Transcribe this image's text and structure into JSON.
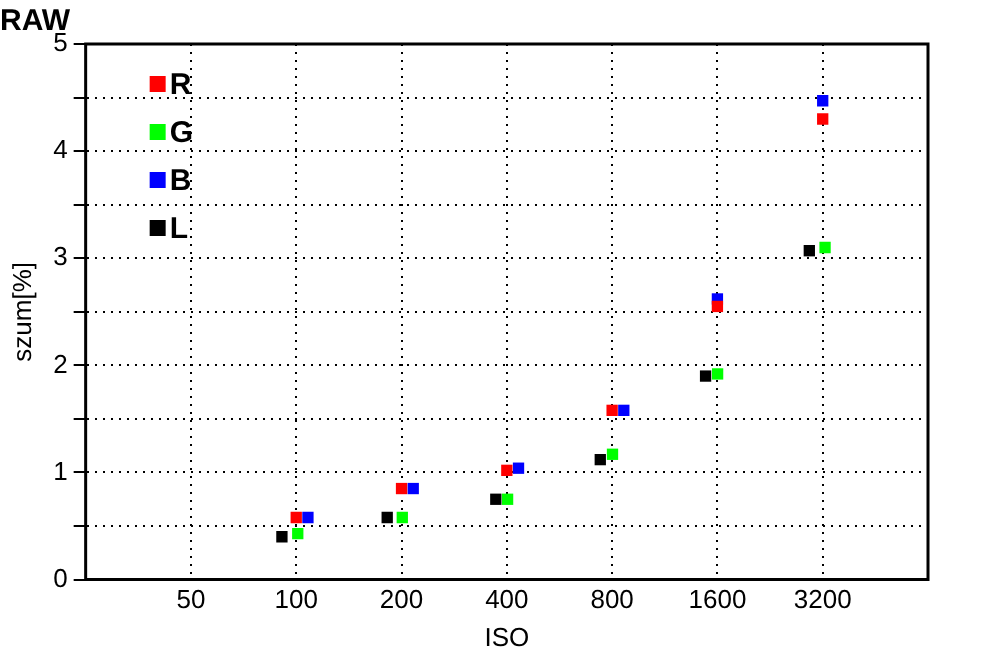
{
  "chart_data": {
    "type": "scatter",
    "title": "RAW",
    "xlabel": "ISO",
    "ylabel": "szum[%]",
    "log": "x",
    "xlim": [
      25,
      6400
    ],
    "xticks": [
      50,
      100,
      200,
      400,
      800,
      1600,
      3200
    ],
    "ylim": [
      0,
      5
    ],
    "yticks": [
      0,
      {
        "value": 0.5,
        "label": null
      },
      1,
      {
        "value": 1.5,
        "label": null
      },
      2,
      {
        "value": 2.5,
        "label": null
      },
      3,
      {
        "value": 3.5,
        "label": null
      },
      4,
      {
        "value": 4.5,
        "label": null
      },
      5
    ],
    "grid": true,
    "legend": "top left",
    "marker": "square",
    "series": [
      {
        "name": "R",
        "color": "#ff0000",
        "x": [
          100,
          200,
          400,
          800,
          1600,
          3200
        ],
        "values": [
          0.58,
          0.85,
          1.02,
          1.58,
          2.55,
          4.3
        ]
      },
      {
        "name": "G",
        "color": "#00ff00",
        "x": [
          101,
          201,
          402,
          802,
          1602,
          3250
        ],
        "values": [
          0.43,
          0.58,
          0.75,
          1.17,
          1.92,
          3.1
        ]
      },
      {
        "name": "B",
        "color": "#0000ff",
        "x": [
          108,
          216,
          432,
          864,
          1600,
          3200
        ],
        "values": [
          0.58,
          0.85,
          1.04,
          1.58,
          2.62,
          4.47
        ]
      },
      {
        "name": "L",
        "color": "#000000",
        "x": [
          91,
          182,
          372,
          740,
          1480,
          2930
        ],
        "values": [
          0.4,
          0.58,
          0.75,
          1.12,
          1.9,
          3.07
        ]
      }
    ]
  }
}
